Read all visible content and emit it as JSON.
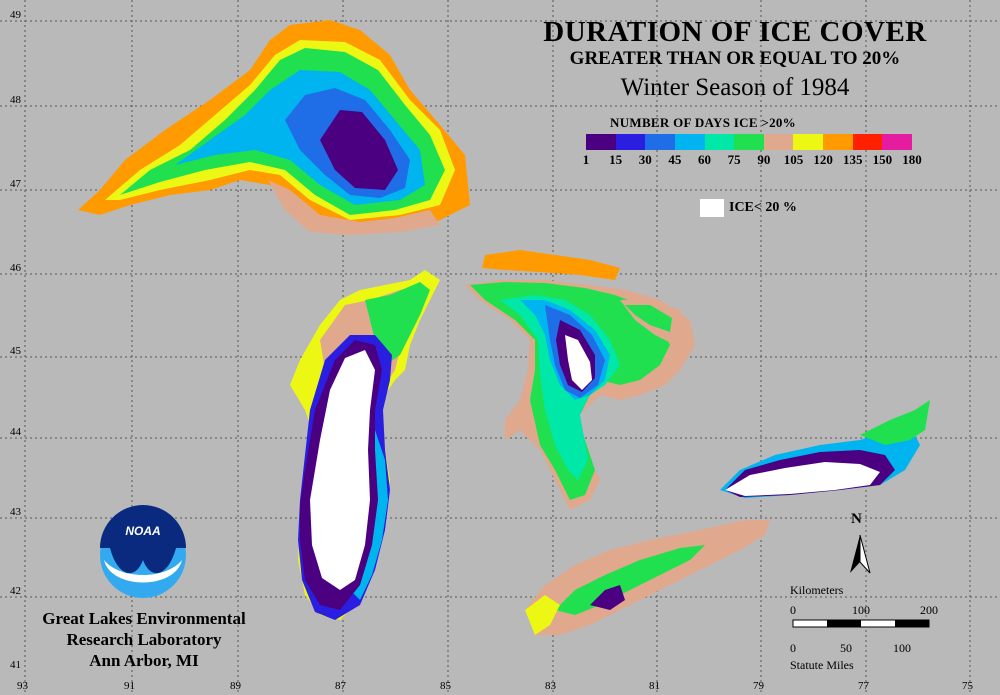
{
  "title": {
    "line1": "DURATION OF ICE COVER",
    "line2": "GREATER THAN OR EQUAL TO 20%",
    "line3": "Winter Season of 1984"
  },
  "legend": {
    "title": "NUMBER OF DAYS ICE >20%",
    "ticks": [
      "1",
      "15",
      "30",
      "45",
      "60",
      "75",
      "90",
      "105",
      "120",
      "135",
      "150",
      "180"
    ],
    "colors": [
      "#4a0080",
      "#2a1ee0",
      "#1f6ee8",
      "#00b4f0",
      "#00e8a8",
      "#20e050",
      "#e0a88c",
      "#ecf814",
      "#ff9a00",
      "#ff2000",
      "#e61ca0"
    ],
    "ice_label": "ICE< 20 %",
    "ice_color": "#ffffff"
  },
  "axes": {
    "lat_labels": [
      "49",
      "48",
      "47",
      "46",
      "45",
      "44",
      "43",
      "42",
      "41"
    ],
    "lon_labels": [
      "93",
      "91",
      "89",
      "87",
      "85",
      "83",
      "81",
      "79",
      "77",
      "75"
    ]
  },
  "organization": {
    "logo_text": "NOAA",
    "line1": "Great Lakes Environmental",
    "line2": "Research Laboratory",
    "line3": "Ann Arbor, MI"
  },
  "north_arrow": {
    "label": "N"
  },
  "scale": {
    "km_label": "Kilometers",
    "km_ticks": [
      "0",
      "100",
      "200"
    ],
    "mi_label": "Statute Miles",
    "mi_ticks": [
      "0",
      "50",
      "100"
    ]
  },
  "background_color": "#b9b9b9"
}
